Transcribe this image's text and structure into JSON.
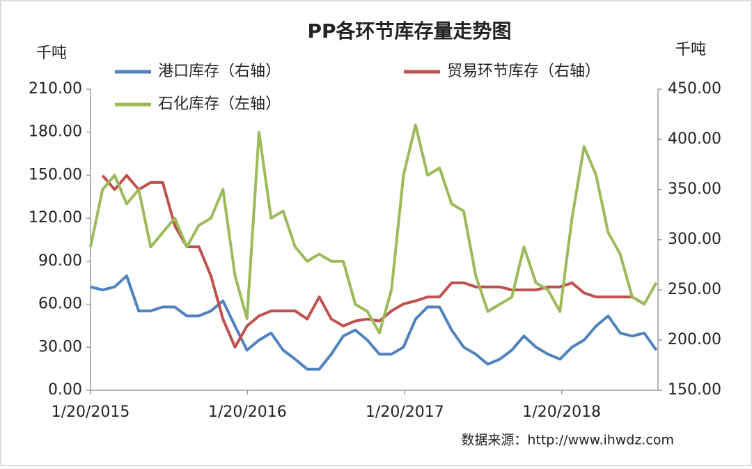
{
  "chart_data": {
    "type": "line",
    "title": "PP各环节库存量走势图",
    "y_unit_label": "千吨",
    "y2_unit_label": "千吨",
    "source": "数据来源：http://www.ihwdz.com",
    "x": [
      "1/20/2015",
      "2/17/2015",
      "3/17/2015",
      "4/14/2015",
      "5/12/2015",
      "6/9/2015",
      "7/7/2015",
      "8/4/2015",
      "9/1/2015",
      "9/29/2015",
      "10/27/2015",
      "11/24/2015",
      "12/22/2015",
      "1/19/2016",
      "2/16/2016",
      "3/15/2016",
      "4/12/2016",
      "5/10/2016",
      "6/7/2016",
      "7/5/2016",
      "8/2/2016",
      "8/30/2016",
      "9/27/2016",
      "10/25/2016",
      "11/22/2016",
      "12/20/2016",
      "1/17/2017",
      "2/14/2017",
      "3/14/2017",
      "4/11/2017",
      "5/9/2017",
      "6/6/2017",
      "7/4/2017",
      "8/1/2017",
      "8/29/2017",
      "9/26/2017",
      "10/24/2017",
      "11/21/2017",
      "12/19/2017",
      "1/16/2018",
      "2/13/2018",
      "3/13/2018",
      "4/10/2018",
      "5/8/2018",
      "6/5/2018",
      "7/3/2018",
      "7/31/2018",
      "8/28/2018"
    ],
    "xlim": [
      "1/20/2015",
      "9/1/2018"
    ],
    "xticks": [
      "1/20/2015",
      "1/20/2016",
      "1/20/2017",
      "1/20/2018"
    ],
    "ylim": [
      0,
      210
    ],
    "yticks": [
      {
        "value": 0,
        "label": "0.00"
      },
      {
        "value": 30,
        "label": "30.00"
      },
      {
        "value": 60,
        "label": "60.00"
      },
      {
        "value": 90,
        "label": "90.00"
      },
      {
        "value": 120,
        "label": "120.00"
      },
      {
        "value": 150,
        "label": "150.00"
      },
      {
        "value": 180,
        "label": "180.00"
      },
      {
        "value": 210,
        "label": "210.00"
      }
    ],
    "y2lim": [
      150,
      450
    ],
    "y2ticks": [
      {
        "value": 150,
        "label": "150.00"
      },
      {
        "value": 200,
        "label": "200.00"
      },
      {
        "value": 250,
        "label": "250.00"
      },
      {
        "value": 300,
        "label": "300.00"
      },
      {
        "value": 350,
        "label": "350.00"
      },
      {
        "value": 400,
        "label": "400.00"
      },
      {
        "value": 450,
        "label": "450.00"
      }
    ],
    "series": [
      {
        "name": "港口库存（右轴）",
        "color": "#4f81bd",
        "axis": "y2",
        "values": [
          253,
          250,
          253,
          264,
          229,
          229,
          233,
          233,
          224,
          224,
          229,
          239,
          214,
          190,
          200,
          207,
          190,
          181,
          171,
          171,
          186,
          204,
          210,
          200,
          186,
          186,
          193,
          221,
          233,
          233,
          210,
          193,
          186,
          176,
          181,
          190,
          204,
          193,
          186,
          181,
          193,
          200,
          214,
          224,
          207,
          204,
          207,
          190
        ]
      },
      {
        "name": "贸易环节库存（右轴）",
        "color": "#c0504d",
        "axis": "y2",
        "values": [
          null,
          364,
          350,
          364,
          350,
          357,
          357,
          314,
          293,
          293,
          264,
          221,
          193,
          214,
          224,
          229,
          229,
          229,
          221,
          243,
          221,
          214,
          219,
          221,
          219,
          229,
          236,
          239,
          243,
          243,
          257,
          257,
          253,
          253,
          253,
          250,
          250,
          250,
          253,
          253,
          257,
          247,
          243,
          243,
          243,
          243,
          236,
          null
        ]
      },
      {
        "name": "石化库存（左轴）",
        "color": "#9bbb59",
        "values": [
          100,
          140,
          150,
          130,
          140,
          100,
          110,
          120,
          100,
          115,
          120,
          140,
          80,
          50,
          180,
          120,
          125,
          100,
          90,
          95,
          90,
          90,
          60,
          55,
          40,
          70,
          150,
          185,
          150,
          155,
          130,
          125,
          80,
          55,
          60,
          65,
          100,
          75,
          70,
          55,
          120,
          170,
          150,
          110,
          95,
          65,
          60,
          75
        ]
      }
    ]
  }
}
